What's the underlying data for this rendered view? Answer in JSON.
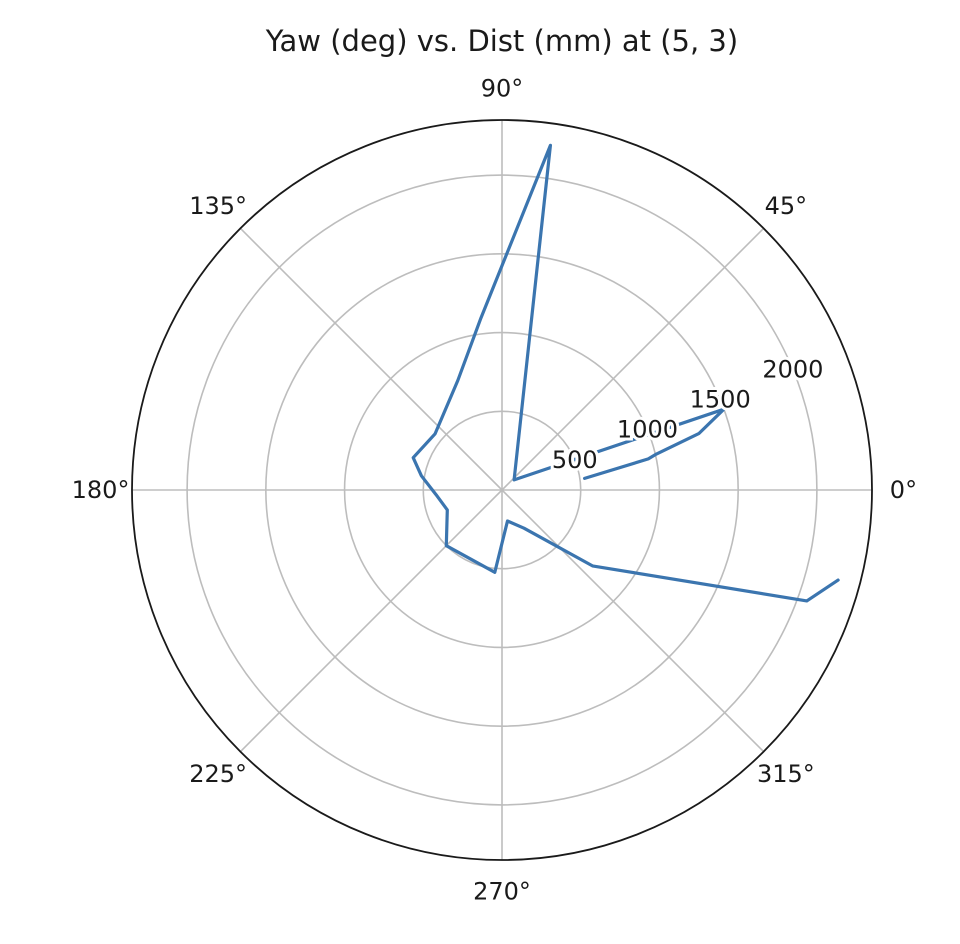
{
  "chart_data": {
    "type": "line",
    "projection": "polar",
    "title": "Yaw (deg) vs. Dist (mm) at (5, 3)",
    "theta_unit": "deg",
    "theta_ticks": [
      0,
      45,
      90,
      135,
      180,
      225,
      270,
      315
    ],
    "theta_tick_labels": [
      "0°",
      "45°",
      "90°",
      "135°",
      "180°",
      "225°",
      "270°",
      "315°"
    ],
    "r_lim": [
      0,
      2350
    ],
    "r_ticks": [
      500,
      1000,
      1500,
      2000
    ],
    "r_tick_labels": [
      "500",
      "1000",
      "1500",
      "2000"
    ],
    "r_label_angle_deg": 22.5,
    "grid": true,
    "series": [
      {
        "color": "#3b75af",
        "theta_deg": [
          8,
          12,
          13,
          16,
          20,
          40,
          82,
          97,
          112,
          140,
          160,
          170,
          184,
          200,
          225,
          265,
          280,
          300,
          320,
          340,
          345
        ],
        "r": [
          530,
          950,
          1000,
          1300,
          1500,
          100,
          2210,
          1100,
          750,
          555,
          600,
          520,
          420,
          370,
          500,
          525,
          200,
          280,
          750,
          2060,
          2210
        ]
      }
    ]
  }
}
